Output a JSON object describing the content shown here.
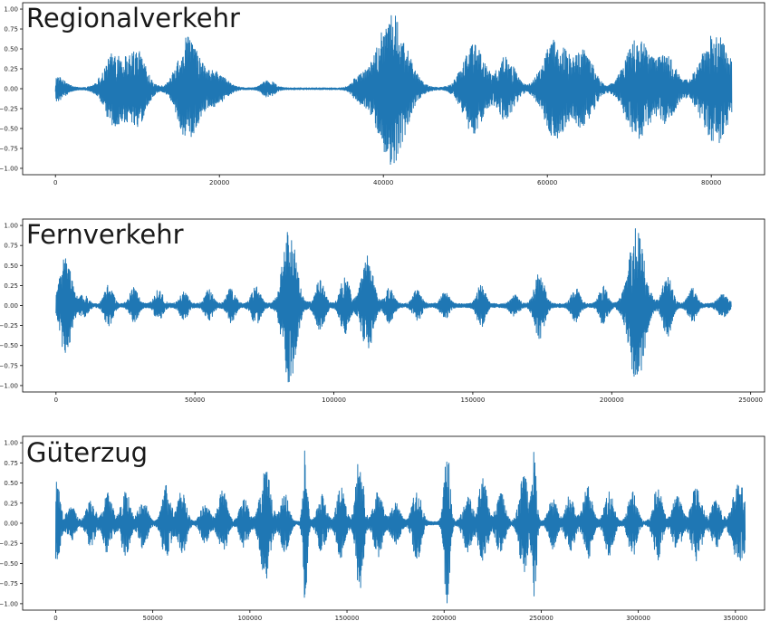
{
  "figure": {
    "accent_color": "#1f77b4"
  },
  "chart_data": [
    {
      "type": "line",
      "title": "Regionalverkehr",
      "x_range": [
        0,
        82500
      ],
      "xlim": [
        -4000,
        86500
      ],
      "ylim": [
        -1.08,
        1.08
      ],
      "xticks": [
        0,
        20000,
        40000,
        60000,
        80000
      ],
      "xtick_labels": [
        "0",
        "20000",
        "40000",
        "60000",
        "80000"
      ],
      "yticks": [
        1.0,
        0.75,
        0.5,
        0.25,
        0.0,
        -0.25,
        -0.5,
        -0.75,
        -1.0
      ],
      "ytick_labels": [
        "1.00",
        "0.75",
        "0.50",
        "0.25",
        "0.00",
        "−0.25",
        "−0.50",
        "−0.75",
        "−1.00"
      ],
      "baseline_amp": 0.012,
      "bursts": [
        {
          "x": 0,
          "amp": 0.15,
          "w": 1500
        },
        {
          "x": 7200,
          "amp": 0.45,
          "w": 1700
        },
        {
          "x": 10000,
          "amp": 0.45,
          "w": 1500
        },
        {
          "x": 16200,
          "amp": 0.65,
          "w": 1700
        },
        {
          "x": 19500,
          "amp": 0.2,
          "w": 1700
        },
        {
          "x": 26000,
          "amp": 0.1,
          "w": 1000
        },
        {
          "x": 37000,
          "amp": 0.12,
          "w": 1000
        },
        {
          "x": 41000,
          "amp": 0.95,
          "w": 2400
        },
        {
          "x": 51000,
          "amp": 0.55,
          "w": 1800
        },
        {
          "x": 55000,
          "amp": 0.4,
          "w": 1400
        },
        {
          "x": 61000,
          "amp": 0.62,
          "w": 2000
        },
        {
          "x": 64500,
          "amp": 0.45,
          "w": 1600
        },
        {
          "x": 71000,
          "amp": 0.62,
          "w": 2000
        },
        {
          "x": 74500,
          "amp": 0.4,
          "w": 1600
        },
        {
          "x": 80500,
          "amp": 0.7,
          "w": 2300
        }
      ]
    },
    {
      "type": "line",
      "title": "Fernverkehr",
      "x_range": [
        0,
        243000
      ],
      "xlim": [
        -12000,
        255000
      ],
      "ylim": [
        -1.08,
        1.08
      ],
      "xticks": [
        0,
        50000,
        100000,
        150000,
        200000,
        250000
      ],
      "xtick_labels": [
        "0",
        "50000",
        "100000",
        "150000",
        "200000",
        "250000"
      ],
      "yticks": [
        1.0,
        0.75,
        0.5,
        0.25,
        0.0,
        -0.25,
        -0.5,
        -0.75,
        -1.0
      ],
      "ytick_labels": [
        "1.00",
        "0.75",
        "0.50",
        "0.25",
        "0.00",
        "−0.25",
        "−0.50",
        "−0.75",
        "−1.00"
      ],
      "baseline_amp": 0.025,
      "bursts": [
        {
          "x": 3500,
          "amp": 0.6,
          "w": 2800
        },
        {
          "x": 10000,
          "amp": 0.12,
          "w": 2000
        },
        {
          "x": 19000,
          "amp": 0.25,
          "w": 2000
        },
        {
          "x": 28000,
          "amp": 0.2,
          "w": 2000
        },
        {
          "x": 37000,
          "amp": 0.18,
          "w": 2000
        },
        {
          "x": 46000,
          "amp": 0.16,
          "w": 2000
        },
        {
          "x": 55000,
          "amp": 0.18,
          "w": 2000
        },
        {
          "x": 63000,
          "amp": 0.2,
          "w": 2000
        },
        {
          "x": 72000,
          "amp": 0.22,
          "w": 2200
        },
        {
          "x": 84000,
          "amp": 0.98,
          "w": 3200
        },
        {
          "x": 95000,
          "amp": 0.3,
          "w": 2200
        },
        {
          "x": 104000,
          "amp": 0.35,
          "w": 2200
        },
        {
          "x": 112000,
          "amp": 0.6,
          "w": 2800
        },
        {
          "x": 120000,
          "amp": 0.2,
          "w": 2000
        },
        {
          "x": 130000,
          "amp": 0.18,
          "w": 2000
        },
        {
          "x": 140000,
          "amp": 0.15,
          "w": 2000
        },
        {
          "x": 153000,
          "amp": 0.25,
          "w": 2000
        },
        {
          "x": 165000,
          "amp": 0.12,
          "w": 2000
        },
        {
          "x": 174000,
          "amp": 0.4,
          "w": 2400
        },
        {
          "x": 187000,
          "amp": 0.2,
          "w": 2000
        },
        {
          "x": 197000,
          "amp": 0.22,
          "w": 2000
        },
        {
          "x": 209000,
          "amp": 0.95,
          "w": 3800
        },
        {
          "x": 220000,
          "amp": 0.38,
          "w": 2200
        },
        {
          "x": 229000,
          "amp": 0.2,
          "w": 2000
        },
        {
          "x": 240000,
          "amp": 0.12,
          "w": 2500
        }
      ]
    },
    {
      "type": "line",
      "title": "Güterzug",
      "x_range": [
        0,
        355000
      ],
      "xlim": [
        -17000,
        365000
      ],
      "ylim": [
        -1.08,
        1.08
      ],
      "xticks": [
        0,
        50000,
        100000,
        150000,
        200000,
        250000,
        300000,
        350000
      ],
      "xtick_labels": [
        "0",
        "50000",
        "100000",
        "150000",
        "200000",
        "250000",
        "300000",
        "350000"
      ],
      "yticks": [
        1.0,
        0.75,
        0.5,
        0.25,
        0.0,
        -0.25,
        -0.5,
        -0.75,
        -1.0
      ],
      "ytick_labels": [
        "1.00",
        "0.75",
        "0.50",
        "0.25",
        "0.00",
        "−0.25",
        "−0.50",
        "−0.75",
        "−1.00"
      ],
      "baseline_amp": 0.02,
      "bursts": [
        {
          "x": 500,
          "amp": 0.5,
          "w": 2500
        },
        {
          "x": 8000,
          "amp": 0.2,
          "w": 3000
        },
        {
          "x": 18000,
          "amp": 0.28,
          "w": 3000
        },
        {
          "x": 27000,
          "amp": 0.38,
          "w": 3000
        },
        {
          "x": 36000,
          "amp": 0.42,
          "w": 3000
        },
        {
          "x": 45000,
          "amp": 0.3,
          "w": 3000
        },
        {
          "x": 57000,
          "amp": 0.45,
          "w": 3000
        },
        {
          "x": 65000,
          "amp": 0.4,
          "w": 3000
        },
        {
          "x": 77000,
          "amp": 0.25,
          "w": 3000
        },
        {
          "x": 86000,
          "amp": 0.4,
          "w": 3000
        },
        {
          "x": 97000,
          "amp": 0.3,
          "w": 3000
        },
        {
          "x": 108000,
          "amp": 0.7,
          "w": 3500
        },
        {
          "x": 118000,
          "amp": 0.35,
          "w": 3000
        },
        {
          "x": 128500,
          "amp": 1.0,
          "w": 1500
        },
        {
          "x": 137000,
          "amp": 0.35,
          "w": 3000
        },
        {
          "x": 147000,
          "amp": 0.45,
          "w": 3000
        },
        {
          "x": 156500,
          "amp": 0.85,
          "w": 2500
        },
        {
          "x": 166000,
          "amp": 0.4,
          "w": 3000
        },
        {
          "x": 175000,
          "amp": 0.28,
          "w": 3000
        },
        {
          "x": 186000,
          "amp": 0.45,
          "w": 3000
        },
        {
          "x": 201500,
          "amp": 0.98,
          "w": 2000
        },
        {
          "x": 212000,
          "amp": 0.35,
          "w": 3000
        },
        {
          "x": 220000,
          "amp": 0.55,
          "w": 3000
        },
        {
          "x": 229000,
          "amp": 0.38,
          "w": 3000
        },
        {
          "x": 241000,
          "amp": 0.6,
          "w": 3000
        },
        {
          "x": 246500,
          "amp": 0.92,
          "w": 1500
        },
        {
          "x": 256000,
          "amp": 0.3,
          "w": 3000
        },
        {
          "x": 265000,
          "amp": 0.35,
          "w": 3000
        },
        {
          "x": 274000,
          "amp": 0.45,
          "w": 3000
        },
        {
          "x": 285000,
          "amp": 0.4,
          "w": 3000
        },
        {
          "x": 297000,
          "amp": 0.4,
          "w": 3000
        },
        {
          "x": 310000,
          "amp": 0.45,
          "w": 3000
        },
        {
          "x": 320000,
          "amp": 0.35,
          "w": 3000
        },
        {
          "x": 330000,
          "amp": 0.48,
          "w": 3500
        },
        {
          "x": 340000,
          "amp": 0.3,
          "w": 3000
        },
        {
          "x": 352000,
          "amp": 0.5,
          "w": 4500
        }
      ]
    }
  ]
}
